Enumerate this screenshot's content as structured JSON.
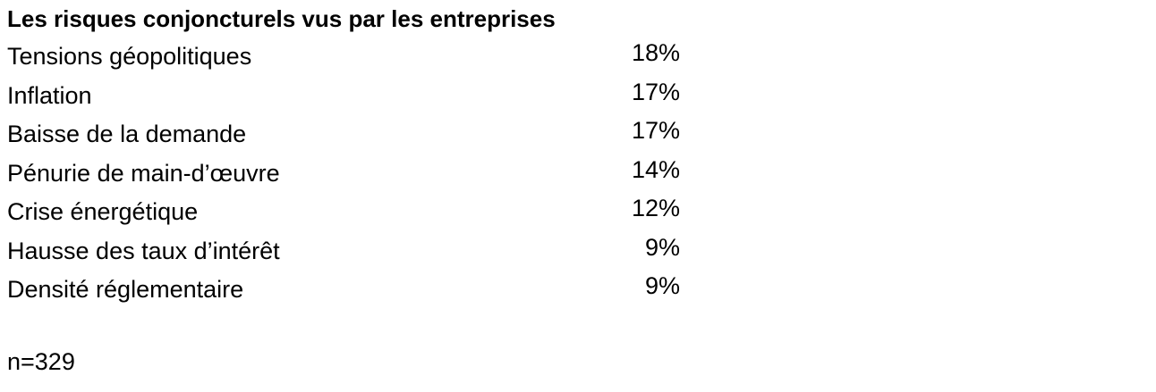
{
  "chart_data": {
    "type": "table",
    "title": "Les risques conjoncturels vus par les entreprises",
    "categories": [
      "Tensions géopolitiques",
      "Inflation",
      "Baisse de la demande",
      "Pénurie de main-d’œuvre",
      "Crise énergétique",
      "Hausse des taux d’intérêt",
      "Densité réglementaire"
    ],
    "values": [
      18,
      17,
      17,
      14,
      12,
      9,
      9
    ],
    "value_labels": [
      "18%",
      "17%",
      "17%",
      "14%",
      "12%",
      "9%",
      "9%"
    ],
    "note": "n=329"
  }
}
